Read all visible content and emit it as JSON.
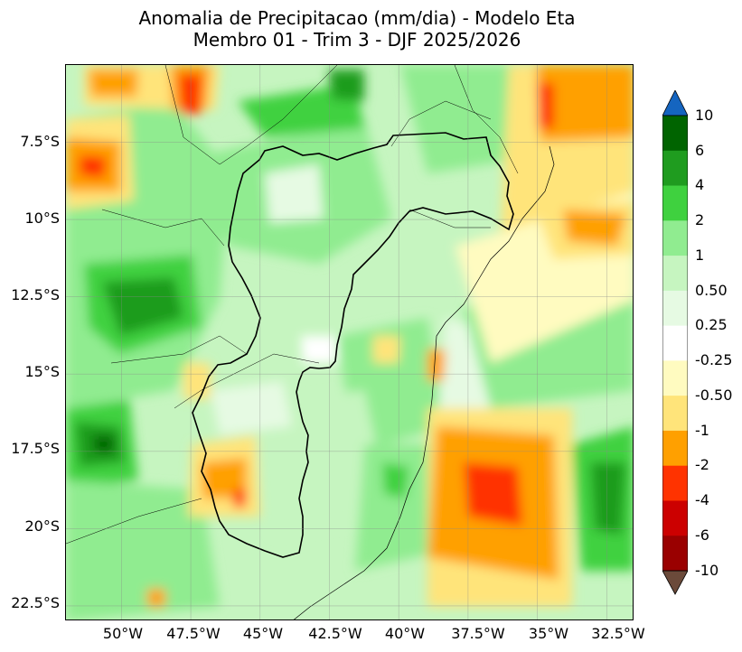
{
  "title": {
    "line1": "Anomalia de Precipitacao (mm/dia) - Modelo Eta",
    "line2": "Membro 01 - Trim 3 - DJF 2025/2026"
  },
  "map": {
    "lat_labels": [
      "7.5°S",
      "10°S",
      "12.5°S",
      "15°S",
      "17.5°S",
      "20°S",
      "22.5°S"
    ],
    "lon_labels": [
      "50°W",
      "47.5°W",
      "45°W",
      "42.5°W",
      "40°W",
      "37.5°W",
      "35°W",
      "32.5°W"
    ],
    "gridlines": true,
    "extent": {
      "lon_min": -52.0,
      "lon_max": -31.5,
      "lat_min": -23.0,
      "lat_max": -5.0
    }
  },
  "colorbar": {
    "levels": [
      "10",
      "6",
      "4",
      "2",
      "1",
      "0.50",
      "0.25",
      "-0.25",
      "-0.50",
      "-1",
      "-2",
      "-4",
      "-6",
      "-10"
    ],
    "colors": [
      "#006400",
      "#1f9c1f",
      "#3fd13f",
      "#90ec90",
      "#c6f5c0",
      "#e6fae3",
      "#ffffff",
      "#fffbc0",
      "#ffe47a",
      "#ffa000",
      "#ff3300",
      "#cc0000",
      "#9a0000"
    ],
    "over_color": "#1565c0",
    "under_color": "#6b4a3a"
  }
}
